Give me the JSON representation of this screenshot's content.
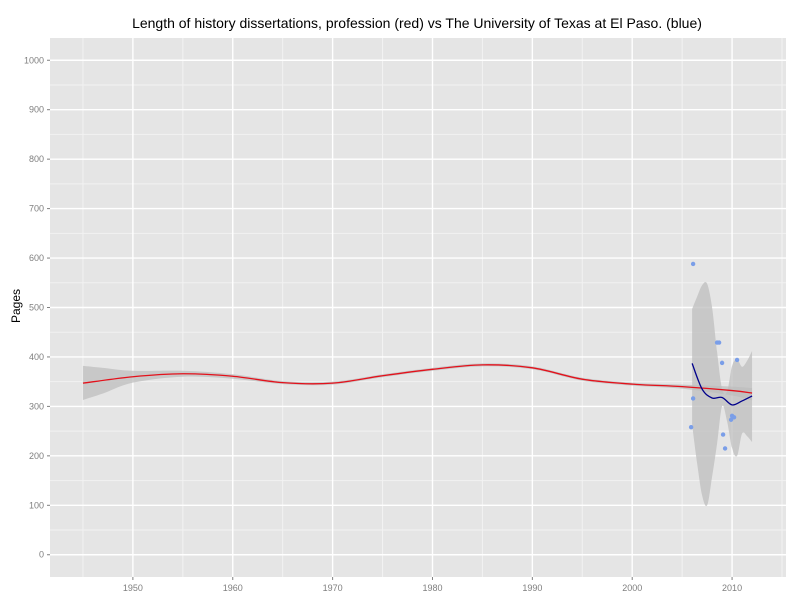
{
  "chart_data": {
    "type": "scatter",
    "title": "Length of history dissertations, profession (red) vs The University of Texas at El Paso. (blue)",
    "xlabel": "",
    "ylabel": "Pages",
    "xlim": [
      1941.7,
      2015.4
    ],
    "ylim": [
      -45,
      1045
    ],
    "x_ticks": [
      1950,
      1960,
      1970,
      1980,
      1990,
      2000,
      2010
    ],
    "y_ticks": [
      0,
      100,
      200,
      300,
      400,
      500,
      600,
      700,
      800,
      900,
      1000
    ],
    "x_tick_labels": [
      "1950",
      "1960",
      "1970",
      "1980",
      "1990",
      "2000",
      "2010"
    ],
    "y_tick_labels": [
      "0",
      "100",
      "200",
      "300",
      "400",
      "500",
      "600",
      "700",
      "800",
      "900",
      "1000"
    ],
    "grid": true,
    "colors": {
      "panel": "#e5e5e5",
      "grid_major": "#ffffff",
      "grid_minor": "#f2f2f2",
      "ribbon": "#bdbdbd",
      "profession_line": "#e3111b",
      "utep_line": "#00008b",
      "points": "#7a9ee8"
    },
    "series": [
      {
        "kind": "smooth_line",
        "x": [
          1945,
          1950,
          1955,
          1960,
          1965,
          1970,
          1975,
          1980,
          1985,
          1990,
          1995,
          2000,
          2005,
          2010,
          2012
        ],
        "y": [
          347,
          360,
          366,
          361,
          348,
          347,
          362,
          375,
          384,
          378,
          355,
          345,
          340,
          332,
          327
        ]
      },
      {
        "kind": "confidence_band",
        "x": [
          1945,
          1947,
          1950,
          1955,
          1960,
          1965,
          1970,
          1975,
          1980,
          1985,
          1990,
          1995,
          2000,
          2005,
          2010,
          2012
        ],
        "upper": [
          382,
          378,
          372,
          372,
          365,
          351,
          350,
          365,
          378,
          387,
          381,
          358,
          348,
          344,
          340,
          337
        ],
        "lower": [
          313,
          326,
          348,
          360,
          356,
          345,
          344,
          359,
          372,
          381,
          375,
          352,
          342,
          336,
          322,
          312
        ]
      },
      {
        "kind": "smooth_line",
        "x": [
          2006,
          2007,
          2008,
          2009,
          2010,
          2011,
          2012
        ],
        "y": [
          387,
          335,
          317,
          318,
          303,
          311,
          321
        ]
      },
      {
        "kind": "confidence_band",
        "x": [
          2006,
          2006.5,
          2007,
          2007.5,
          2008,
          2008.5,
          2009,
          2009.5,
          2010,
          2010.5,
          2011,
          2011.5,
          2012
        ],
        "upper": [
          497,
          522,
          545,
          548,
          500,
          410,
          335,
          330,
          382,
          395,
          380,
          392,
          412
        ],
        "lower": [
          263,
          185,
          120,
          100,
          158,
          225,
          300,
          270,
          216,
          200,
          245,
          240,
          228
        ]
      },
      {
        "kind": "points",
        "x": [
          2005.9,
          2006.1,
          2006.1,
          2008.5,
          2008.7,
          2009,
          2009.1,
          2009.3,
          2009.9,
          2010,
          2010.2,
          2010.5
        ],
        "y": [
          258,
          588,
          316,
          429,
          429,
          388,
          243,
          215,
          273,
          281,
          278,
          394
        ]
      }
    ]
  }
}
